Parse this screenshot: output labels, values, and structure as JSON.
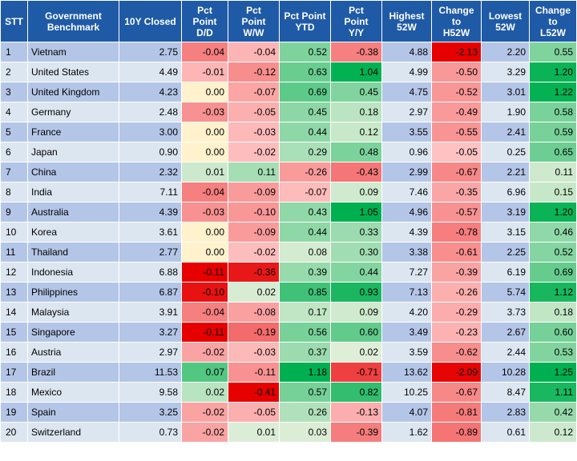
{
  "chart_data": {
    "type": "table",
    "columns": [
      {
        "key": "stt",
        "lines": [
          "STT"
        ]
      },
      {
        "key": "name",
        "lines": [
          "Government",
          "Benchmark"
        ]
      },
      {
        "key": "closed",
        "lines": [
          "10Y Closed"
        ]
      },
      {
        "key": "dd",
        "lines": [
          "Pct",
          "Point",
          "D/D"
        ]
      },
      {
        "key": "ww",
        "lines": [
          "Pct",
          "Point",
          "W/W"
        ]
      },
      {
        "key": "ytd",
        "lines": [
          "Pct Point",
          "YTD"
        ]
      },
      {
        "key": "yy",
        "lines": [
          "Pct",
          "Point",
          "Y/Y"
        ]
      },
      {
        "key": "high",
        "lines": [
          "Highest",
          "52W"
        ]
      },
      {
        "key": "chh",
        "lines": [
          "Change",
          "to",
          "H52W"
        ]
      },
      {
        "key": "low",
        "lines": [
          "Lowest",
          "52W"
        ]
      },
      {
        "key": "chl",
        "lines": [
          "Change",
          "to",
          "L52W"
        ]
      }
    ],
    "rows": [
      {
        "stt": "1",
        "name": "Vietnam",
        "closed": "2.75",
        "dd": "-0.04",
        "ww": "-0.04",
        "ytd": "0.52",
        "yy": "-0.38",
        "high": "4.88",
        "chh": "-2.13",
        "low": "2.20",
        "chl": "0.55"
      },
      {
        "stt": "2",
        "name": "United States",
        "closed": "4.49",
        "dd": "-0.01",
        "ww": "-0.12",
        "ytd": "0.63",
        "yy": "1.04",
        "high": "4.99",
        "chh": "-0.50",
        "low": "3.29",
        "chl": "1.20"
      },
      {
        "stt": "3",
        "name": "United Kingdom",
        "closed": "4.23",
        "dd": "0.00",
        "ww": "-0.07",
        "ytd": "0.69",
        "yy": "0.45",
        "high": "4.75",
        "chh": "-0.52",
        "low": "3.01",
        "chl": "1.22"
      },
      {
        "stt": "4",
        "name": "Germany",
        "closed": "2.48",
        "dd": "-0.03",
        "ww": "-0.05",
        "ytd": "0.45",
        "yy": "0.18",
        "high": "2.97",
        "chh": "-0.49",
        "low": "1.90",
        "chl": "0.58"
      },
      {
        "stt": "5",
        "name": "France",
        "closed": "3.00",
        "dd": "0.00",
        "ww": "-0.03",
        "ytd": "0.44",
        "yy": "0.12",
        "high": "3.55",
        "chh": "-0.55",
        "low": "2.41",
        "chl": "0.59"
      },
      {
        "stt": "6",
        "name": "Japan",
        "closed": "0.90",
        "dd": "0.00",
        "ww": "-0.02",
        "ytd": "0.29",
        "yy": "0.48",
        "high": "0.96",
        "chh": "-0.05",
        "low": "0.25",
        "chl": "0.65"
      },
      {
        "stt": "7",
        "name": "China",
        "closed": "2.32",
        "dd": "0.01",
        "ww": "0.11",
        "ytd": "-0.26",
        "yy": "-0.43",
        "high": "2.99",
        "chh": "-0.67",
        "low": "2.21",
        "chl": "0.11"
      },
      {
        "stt": "8",
        "name": "India",
        "closed": "7.11",
        "dd": "-0.04",
        "ww": "-0.09",
        "ytd": "-0.07",
        "yy": "0.09",
        "high": "7.46",
        "chh": "-0.35",
        "low": "6.96",
        "chl": "0.15"
      },
      {
        "stt": "9",
        "name": "Australia",
        "closed": "4.39",
        "dd": "-0.03",
        "ww": "-0.10",
        "ytd": "0.43",
        "yy": "1.05",
        "high": "4.96",
        "chh": "-0.57",
        "low": "3.19",
        "chl": "1.20"
      },
      {
        "stt": "10",
        "name": "Korea",
        "closed": "3.61",
        "dd": "0.00",
        "ww": "-0.09",
        "ytd": "0.44",
        "yy": "0.33",
        "high": "4.39",
        "chh": "-0.78",
        "low": "3.15",
        "chl": "0.46"
      },
      {
        "stt": "11",
        "name": "Thailand",
        "closed": "2.77",
        "dd": "0.00",
        "ww": "-0.02",
        "ytd": "0.08",
        "yy": "0.30",
        "high": "3.38",
        "chh": "-0.61",
        "low": "2.25",
        "chl": "0.52"
      },
      {
        "stt": "12",
        "name": "Indonesia",
        "closed": "6.88",
        "dd": "-0.11",
        "ww": "-0.36",
        "ytd": "0.39",
        "yy": "0.44",
        "high": "7.27",
        "chh": "-0.39",
        "low": "6.19",
        "chl": "0.69"
      },
      {
        "stt": "13",
        "name": "Philippines",
        "closed": "6.87",
        "dd": "-0.10",
        "ww": "0.02",
        "ytd": "0.85",
        "yy": "0.93",
        "high": "7.13",
        "chh": "-0.26",
        "low": "5.74",
        "chl": "1.12"
      },
      {
        "stt": "14",
        "name": "Malaysia",
        "closed": "3.91",
        "dd": "-0.04",
        "ww": "-0.08",
        "ytd": "0.17",
        "yy": "0.09",
        "high": "4.20",
        "chh": "-0.29",
        "low": "3.73",
        "chl": "0.18"
      },
      {
        "stt": "15",
        "name": "Singapore",
        "closed": "3.27",
        "dd": "-0.11",
        "ww": "-0.19",
        "ytd": "0.56",
        "yy": "0.60",
        "high": "3.49",
        "chh": "-0.23",
        "low": "2.67",
        "chl": "0.60"
      },
      {
        "stt": "16",
        "name": "Austria",
        "closed": "2.97",
        "dd": "-0.02",
        "ww": "-0.03",
        "ytd": "0.37",
        "yy": "0.02",
        "high": "3.59",
        "chh": "-0.62",
        "low": "2.44",
        "chl": "0.53"
      },
      {
        "stt": "17",
        "name": "Brazil",
        "closed": "11.53",
        "dd": "0.07",
        "ww": "-0.11",
        "ytd": "1.18",
        "yy": "-0.71",
        "high": "13.62",
        "chh": "-2.09",
        "low": "10.28",
        "chl": "1.25"
      },
      {
        "stt": "18",
        "name": "Mexico",
        "closed": "9.58",
        "dd": "0.02",
        "ww": "-0.41",
        "ytd": "0.57",
        "yy": "0.82",
        "high": "10.25",
        "chh": "-0.67",
        "low": "8.47",
        "chl": "1.11"
      },
      {
        "stt": "19",
        "name": "Spain",
        "closed": "3.25",
        "dd": "-0.02",
        "ww": "-0.05",
        "ytd": "0.26",
        "yy": "-0.13",
        "high": "4.07",
        "chh": "-0.81",
        "low": "2.83",
        "chl": "0.42"
      },
      {
        "stt": "20",
        "name": "Switzerland",
        "closed": "0.73",
        "dd": "-0.02",
        "ww": "0.01",
        "ytd": "0.03",
        "yy": "-0.39",
        "high": "1.62",
        "chh": "-0.89",
        "low": "0.61",
        "chl": "0.12"
      }
    ]
  }
}
